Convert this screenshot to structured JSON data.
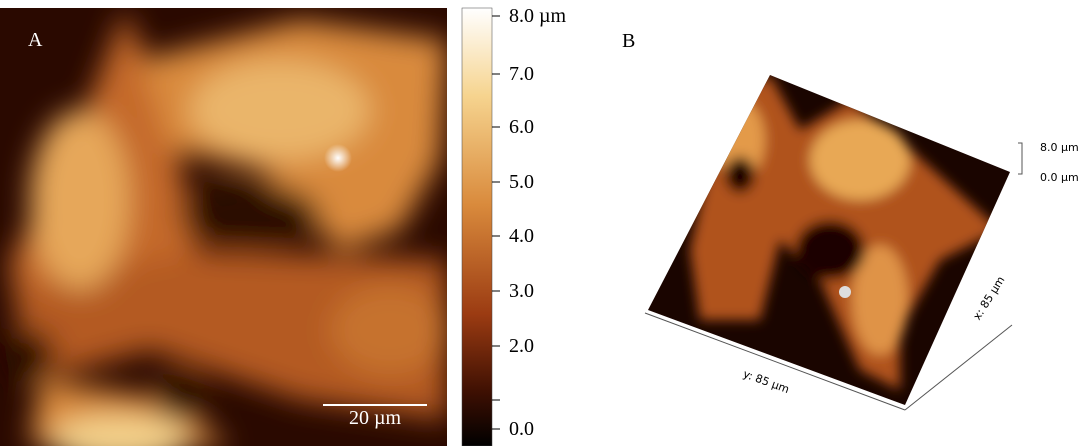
{
  "panel_a": {
    "label": "A",
    "scale_bar": "20 µm",
    "colorbar": {
      "labels": [
        "8.0 µm",
        "7.0",
        "6.0",
        "5.0",
        "4.0",
        "3.0",
        "2.0",
        "0.0"
      ]
    }
  },
  "panel_b": {
    "label": "B",
    "z_labels": [
      "8.0 µm",
      "0.0 µm"
    ],
    "y_axis": "y: 85 µm",
    "x_axis": "x: 85 µm"
  }
}
